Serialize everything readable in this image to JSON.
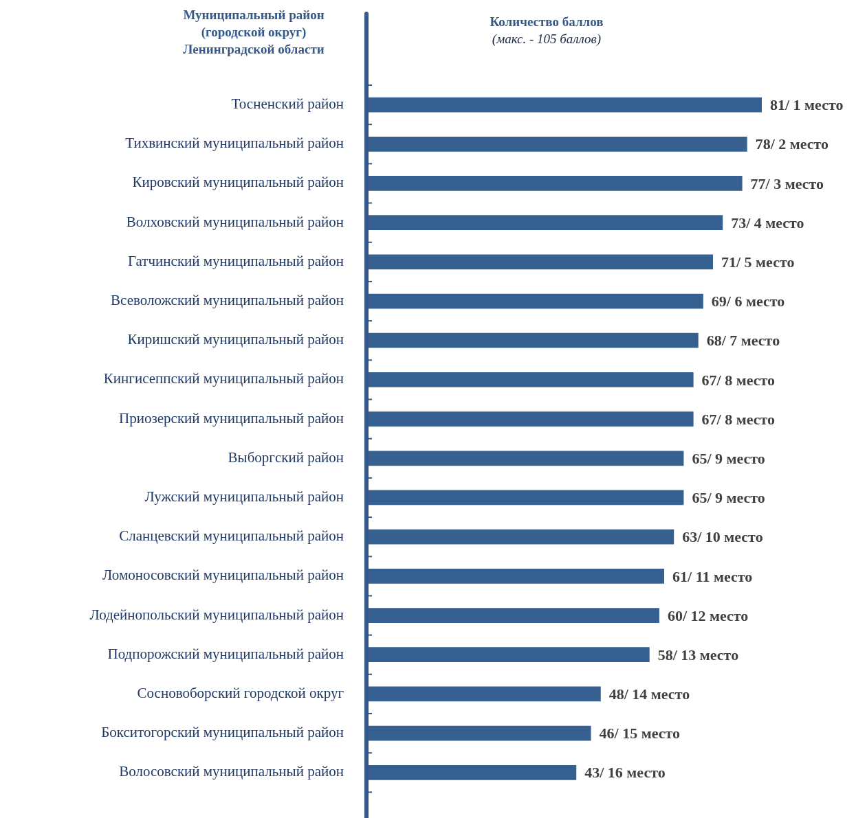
{
  "chart_data": {
    "type": "bar",
    "orientation": "horizontal",
    "xlabel": "Количество баллов",
    "ylabel": "Муниципальный район (городской округ) Ленинградской области",
    "annotations": [
      "(макс. - 105 баллов)"
    ],
    "categories": [
      "Тосненский район",
      "Тихвинский муниципальный район",
      "Кировский муниципальный район",
      "Волховский муниципальный район",
      "Гатчинский муниципальный район",
      "Всеволожский муниципальный район",
      "Киришский муниципальный район",
      "Кингисеппский муниципальный район",
      "Приозерский муниципальный район",
      "Выборгский район",
      "Лужский муниципальный район",
      "Сланцевский муниципальный район",
      "Ломоносовский муниципальный район",
      "Лодейнопольский муниципальный район",
      "Подпорожский муниципальный район",
      "Сосновоборский городской округ",
      "Бокситогорский муниципальный район",
      "Волосовский муниципальный район"
    ],
    "values": [
      81,
      78,
      77,
      73,
      71,
      69,
      68,
      67,
      67,
      65,
      65,
      63,
      61,
      60,
      58,
      48,
      46,
      43
    ],
    "value_labels": [
      "81/ 1 место",
      "78/ 2 место",
      "77/ 3 место",
      "73/ 4 место",
      "71/ 5 место",
      "69/ 6 место",
      "68/ 7 место",
      "67/ 8 место",
      "67/ 8 место",
      "65/ 9 место",
      "65/ 9 место",
      "63/ 10 место",
      "61/ 11 место",
      "60/ 12 место",
      "58/ 13 место",
      "48/ 14 место",
      "46/ 15 место",
      "43/ 16 место"
    ],
    "color": "#35608f",
    "tick_labels": "y"
  }
}
